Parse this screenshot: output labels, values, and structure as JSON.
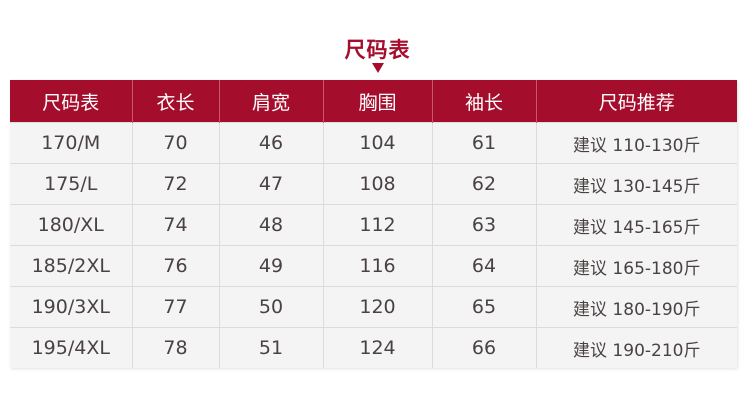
{
  "title": "尺码表",
  "accent_color": "#a50d2d",
  "headers": [
    "尺码表",
    "衣长",
    "肩宽",
    "胸围",
    "袖长",
    "尺码推荐"
  ],
  "rows": [
    [
      "170/M",
      "70",
      "46",
      "104",
      "61",
      "建议 110-130斤"
    ],
    [
      "175/L",
      "72",
      "47",
      "108",
      "62",
      "建议 130-145斤"
    ],
    [
      "180/XL",
      "74",
      "48",
      "112",
      "63",
      "建议 145-165斤"
    ],
    [
      "185/2XL",
      "76",
      "49",
      "116",
      "64",
      "建议 165-180斤"
    ],
    [
      "190/3XL",
      "77",
      "50",
      "120",
      "65",
      "建议 180-190斤"
    ],
    [
      "195/4XL",
      "78",
      "51",
      "124",
      "66",
      "建议 190-210斤"
    ]
  ]
}
